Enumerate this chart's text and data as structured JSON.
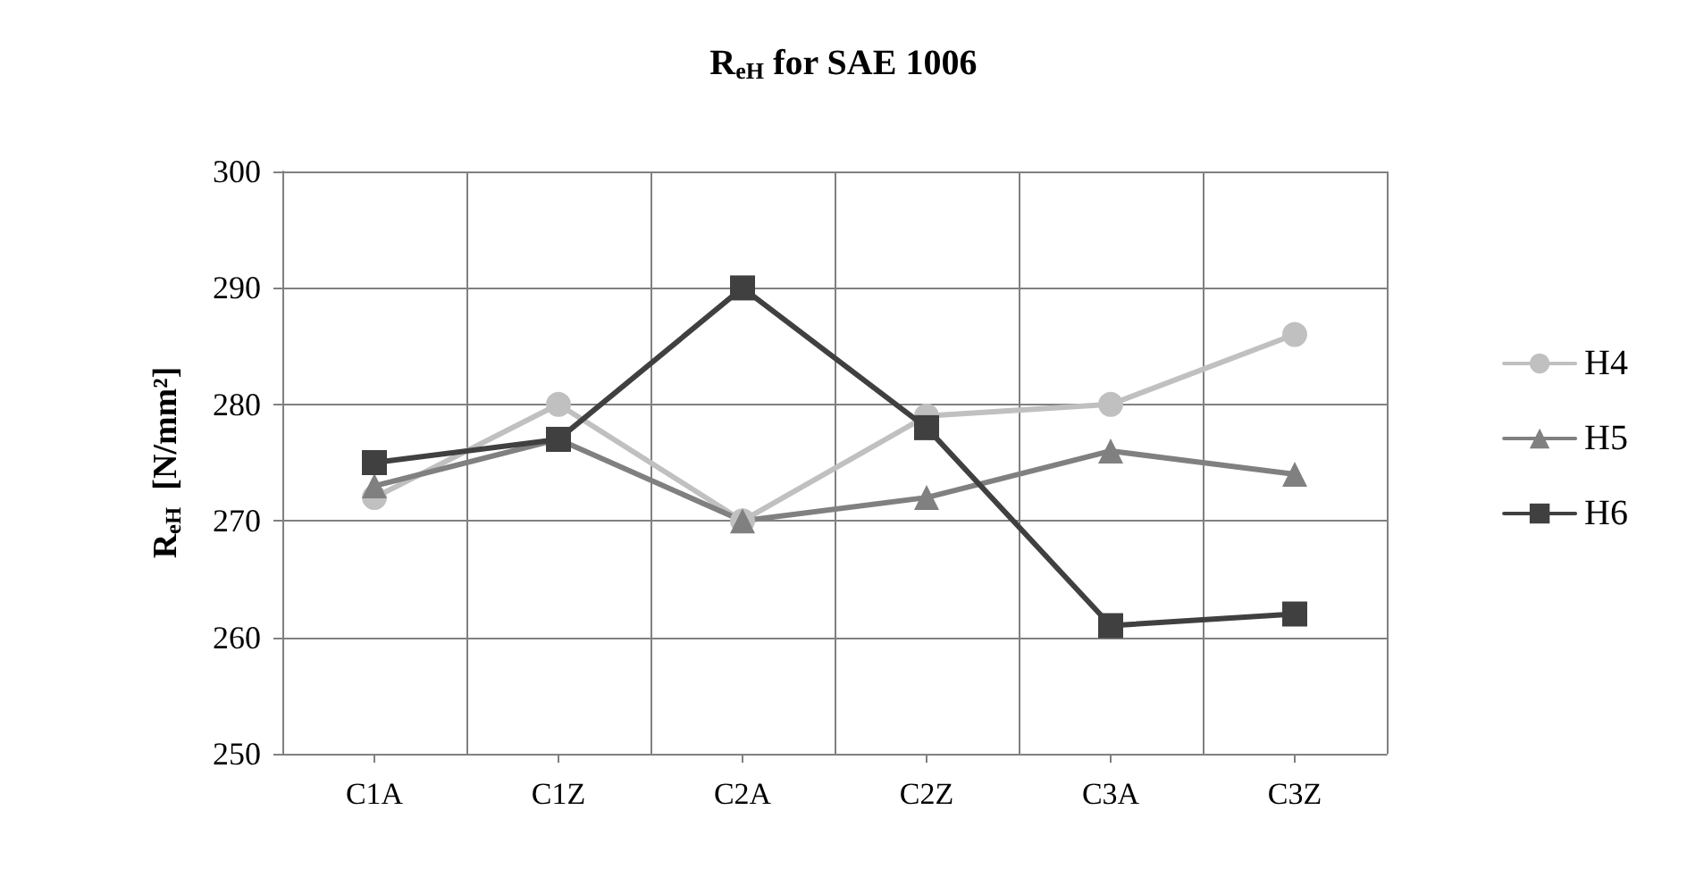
{
  "chart_data": {
    "type": "line",
    "title": "R$_{eH}$ for SAE 1006",
    "ylabel": "R$_{eH}$  [N/mm²]",
    "categories": [
      "C1A",
      "C1Z",
      "C2A",
      "C2Z",
      "C3A",
      "C3Z"
    ],
    "series": [
      {
        "name": "H4",
        "color": "#c0c0c0",
        "marker": "circle",
        "values": [
          272,
          280,
          270,
          279,
          280,
          286
        ]
      },
      {
        "name": "H5",
        "color": "#808080",
        "marker": "triangle",
        "values": [
          273,
          277,
          270,
          272,
          276,
          274
        ]
      },
      {
        "name": "H6",
        "color": "#404040",
        "marker": "square",
        "values": [
          275,
          277,
          290,
          278,
          261,
          262
        ]
      }
    ],
    "ylim": [
      250,
      300
    ],
    "yticks": [
      250,
      260,
      270,
      280,
      290,
      300
    ],
    "grid": true,
    "legend": "right",
    "line_style": "solid"
  }
}
